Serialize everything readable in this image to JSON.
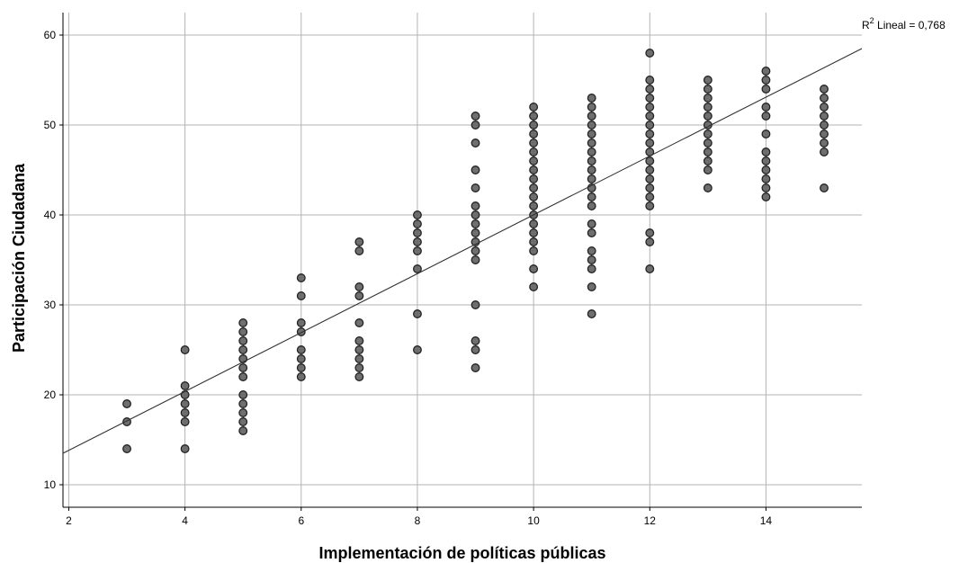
{
  "chart_data": {
    "type": "scatter",
    "xlabel": "Implementación de políticas públicas",
    "ylabel": "Participación Ciudadana",
    "xlim": [
      1.9,
      15.65
    ],
    "ylim": [
      7.5,
      62.5
    ],
    "xticks": [
      2,
      4,
      6,
      8,
      10,
      12,
      14
    ],
    "yticks": [
      10,
      20,
      30,
      40,
      50,
      60
    ],
    "grid": true,
    "annotation": {
      "prefix": "R",
      "sup": "2",
      "text": " Lineal = 0,768"
    },
    "fit_line": {
      "x": [
        1.9,
        15.65
      ],
      "y": [
        13.5,
        58.5
      ]
    },
    "points": [
      [
        3,
        19
      ],
      [
        3,
        17
      ],
      [
        3,
        14
      ],
      [
        4,
        25
      ],
      [
        4,
        21
      ],
      [
        4,
        20
      ],
      [
        4,
        19
      ],
      [
        4,
        18
      ],
      [
        4,
        17
      ],
      [
        4,
        14
      ],
      [
        5,
        28
      ],
      [
        5,
        27
      ],
      [
        5,
        26
      ],
      [
        5,
        25
      ],
      [
        5,
        24
      ],
      [
        5,
        23
      ],
      [
        5,
        22
      ],
      [
        5,
        20
      ],
      [
        5,
        19
      ],
      [
        5,
        18
      ],
      [
        5,
        17
      ],
      [
        5,
        16
      ],
      [
        6,
        33
      ],
      [
        6,
        31
      ],
      [
        6,
        28
      ],
      [
        6,
        27
      ],
      [
        6,
        25
      ],
      [
        6,
        24
      ],
      [
        6,
        23
      ],
      [
        6,
        22
      ],
      [
        7,
        37
      ],
      [
        7,
        36
      ],
      [
        7,
        32
      ],
      [
        7,
        31
      ],
      [
        7,
        28
      ],
      [
        7,
        26
      ],
      [
        7,
        25
      ],
      [
        7,
        24
      ],
      [
        7,
        23
      ],
      [
        7,
        22
      ],
      [
        8,
        40
      ],
      [
        8,
        39
      ],
      [
        8,
        38
      ],
      [
        8,
        37
      ],
      [
        8,
        36
      ],
      [
        8,
        34
      ],
      [
        8,
        29
      ],
      [
        8,
        25
      ],
      [
        9,
        51
      ],
      [
        9,
        50
      ],
      [
        9,
        48
      ],
      [
        9,
        45
      ],
      [
        9,
        43
      ],
      [
        9,
        41
      ],
      [
        9,
        40
      ],
      [
        9,
        39
      ],
      [
        9,
        38
      ],
      [
        9,
        37
      ],
      [
        9,
        36
      ],
      [
        9,
        35
      ],
      [
        9,
        30
      ],
      [
        9,
        26
      ],
      [
        9,
        25
      ],
      [
        9,
        23
      ],
      [
        10,
        52
      ],
      [
        10,
        51
      ],
      [
        10,
        50
      ],
      [
        10,
        49
      ],
      [
        10,
        48
      ],
      [
        10,
        47
      ],
      [
        10,
        46
      ],
      [
        10,
        45
      ],
      [
        10,
        44
      ],
      [
        10,
        43
      ],
      [
        10,
        42
      ],
      [
        10,
        41
      ],
      [
        10,
        40
      ],
      [
        10,
        39
      ],
      [
        10,
        38
      ],
      [
        10,
        37
      ],
      [
        10,
        36
      ],
      [
        10,
        34
      ],
      [
        10,
        32
      ],
      [
        11,
        53
      ],
      [
        11,
        52
      ],
      [
        11,
        51
      ],
      [
        11,
        50
      ],
      [
        11,
        49
      ],
      [
        11,
        48
      ],
      [
        11,
        47
      ],
      [
        11,
        46
      ],
      [
        11,
        45
      ],
      [
        11,
        44
      ],
      [
        11,
        43
      ],
      [
        11,
        42
      ],
      [
        11,
        41
      ],
      [
        11,
        39
      ],
      [
        11,
        38
      ],
      [
        11,
        36
      ],
      [
        11,
        35
      ],
      [
        11,
        34
      ],
      [
        11,
        32
      ],
      [
        11,
        29
      ],
      [
        12,
        58
      ],
      [
        12,
        55
      ],
      [
        12,
        54
      ],
      [
        12,
        53
      ],
      [
        12,
        52
      ],
      [
        12,
        51
      ],
      [
        12,
        50
      ],
      [
        12,
        49
      ],
      [
        12,
        48
      ],
      [
        12,
        47
      ],
      [
        12,
        46
      ],
      [
        12,
        45
      ],
      [
        12,
        44
      ],
      [
        12,
        43
      ],
      [
        12,
        42
      ],
      [
        12,
        41
      ],
      [
        12,
        38
      ],
      [
        12,
        37
      ],
      [
        12,
        34
      ],
      [
        13,
        55
      ],
      [
        13,
        54
      ],
      [
        13,
        53
      ],
      [
        13,
        52
      ],
      [
        13,
        51
      ],
      [
        13,
        50
      ],
      [
        13,
        49
      ],
      [
        13,
        48
      ],
      [
        13,
        47
      ],
      [
        13,
        46
      ],
      [
        13,
        45
      ],
      [
        13,
        43
      ],
      [
        14,
        56
      ],
      [
        14,
        55
      ],
      [
        14,
        54
      ],
      [
        14,
        52
      ],
      [
        14,
        51
      ],
      [
        14,
        49
      ],
      [
        14,
        47
      ],
      [
        14,
        46
      ],
      [
        14,
        45
      ],
      [
        14,
        44
      ],
      [
        14,
        43
      ],
      [
        14,
        42
      ],
      [
        15,
        54
      ],
      [
        15,
        53
      ],
      [
        15,
        52
      ],
      [
        15,
        51
      ],
      [
        15,
        50
      ],
      [
        15,
        49
      ],
      [
        15,
        48
      ],
      [
        15,
        47
      ],
      [
        15,
        43
      ]
    ]
  }
}
